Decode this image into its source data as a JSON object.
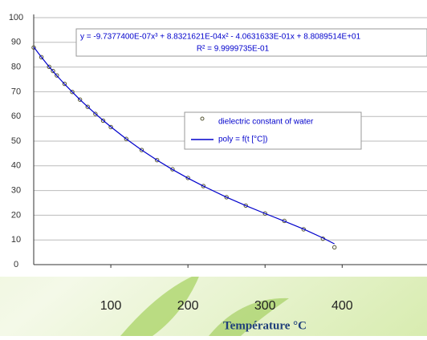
{
  "chart_data": {
    "type": "scatter",
    "equation": "y = -9.7377400E-07x³ + 8.8321621E-04x² - 4.0631633E-01x + 8.8089514E+01",
    "r_squared": "R² = 9.9999735E-01",
    "x_label": "Température °C",
    "x": [
      0,
      10,
      20,
      25,
      30,
      40,
      50,
      60,
      70,
      80,
      90,
      100,
      120,
      140,
      160,
      180,
      200,
      220,
      250,
      275,
      300,
      325,
      350,
      375,
      390
    ],
    "series": [
      {
        "name": "dielectric constant of water",
        "color": "#555533",
        "style": "marker",
        "values": [
          87.9,
          84.0,
          80.1,
          78.4,
          76.6,
          73.2,
          69.9,
          66.8,
          63.9,
          61.0,
          58.3,
          55.7,
          50.9,
          46.4,
          42.3,
          38.6,
          35.1,
          31.8,
          27.3,
          23.9,
          20.7,
          17.7,
          14.3,
          10.5,
          7.0
        ]
      },
      {
        "name": "poly = f(t [°C])",
        "color": "#0000cc",
        "style": "line",
        "values": [
          88.1,
          84.0,
          80.1,
          78.3,
          76.5,
          73.1,
          69.9,
          66.8,
          63.9,
          61.1,
          58.4,
          55.8,
          50.9,
          46.4,
          42.3,
          38.5,
          35.0,
          31.8,
          27.3,
          23.9,
          20.7,
          17.6,
          14.4,
          10.8,
          8.4
        ]
      }
    ],
    "xlim": [
      0,
      510
    ],
    "ylim": [
      0,
      100
    ],
    "xticks": [
      100,
      200,
      300,
      400
    ],
    "yticks": [
      0,
      10,
      20,
      30,
      40,
      50,
      60,
      70,
      80,
      90,
      100
    ],
    "grid": true
  }
}
